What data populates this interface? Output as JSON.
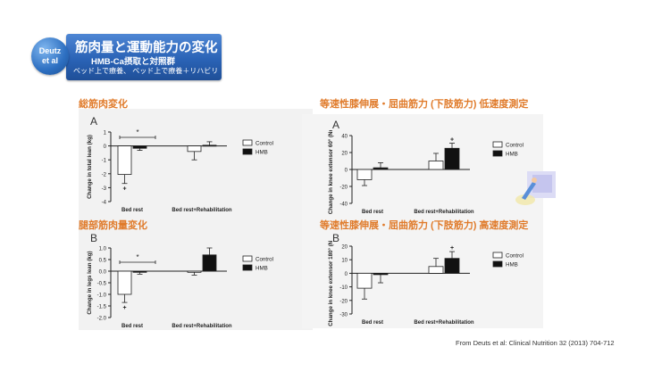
{
  "header": {
    "author_badge_line1": "Deutz",
    "author_badge_line2": "et al",
    "title": "筋肉量と運動能力の変化",
    "subtitle": "HMB-Ca摂取と対照群",
    "subtitle2": "ベッド上で療養、 ベッド上で療養＋リハビリ"
  },
  "colors": {
    "heading": "#e07b2b",
    "title_bar": "#2a63b6",
    "control_bar": "#ffffff",
    "hmb_bar": "#111111"
  },
  "citation": "From Deuts et al: Clinical Nutrition 32 (2013) 704-712",
  "chart_data": [
    {
      "id": "total-lean",
      "heading": "総筋肉変化",
      "panel_letter": "A",
      "type": "bar",
      "ylabel": "Change in total lean (kg)",
      "ylim": [
        -4,
        1
      ],
      "yticks": [
        "1",
        "0",
        "-1",
        "-2",
        "-3",
        "-4"
      ],
      "yticks_values": [
        1,
        0,
        -1,
        -2,
        -3,
        -4
      ],
      "categories": [
        "Bed rest",
        "Bed rest+Rehabilitation"
      ],
      "series": [
        {
          "name": "Control",
          "values": [
            -2.05,
            -0.4
          ],
          "errors": [
            0.65,
            0.6
          ]
        },
        {
          "name": "HMB",
          "values": [
            -0.17,
            0.05
          ],
          "errors": [
            0.15,
            0.25
          ]
        }
      ],
      "annotations": {
        "significance": "*",
        "dagger": "+"
      },
      "legend": [
        "Control",
        "HMB"
      ]
    },
    {
      "id": "legs-lean",
      "heading": "腿部筋肉量変化",
      "panel_letter": "B",
      "type": "bar",
      "ylabel": "Change in legs lean (kg)",
      "ylim": [
        -2.0,
        1.0
      ],
      "yticks": [
        "1.0",
        "0.5",
        "0.0",
        "-0.5",
        "-1.0",
        "-1.5",
        "-2.0"
      ],
      "yticks_values": [
        1.0,
        0.5,
        0.0,
        -0.5,
        -1.0,
        -1.5,
        -2.0
      ],
      "categories": [
        "Bed rest",
        "Bed rest+Rehabilitation"
      ],
      "series": [
        {
          "name": "Control",
          "values": [
            -1.0,
            -0.05
          ],
          "errors": [
            0.35,
            0.12
          ]
        },
        {
          "name": "HMB",
          "values": [
            -0.05,
            0.7
          ],
          "errors": [
            0.08,
            0.3
          ]
        }
      ],
      "annotations": {
        "significance": "*",
        "dagger": "+"
      },
      "legend": [
        "Control",
        "HMB"
      ]
    },
    {
      "id": "low-speed",
      "heading": "等速性膝伸展・屈曲筋力 (下肢筋力) 低速度測定",
      "panel_letter": "A",
      "type": "bar",
      "ylabel": "Change in knee extensor 60° (Nm)",
      "ylim": [
        -40,
        40
      ],
      "yticks": [
        "40",
        "20",
        "0",
        "-20",
        "-40"
      ],
      "yticks_values": [
        40,
        20,
        0,
        -20,
        -40
      ],
      "categories": [
        "Bed rest",
        "Bed rest+Rehabilitation"
      ],
      "series": [
        {
          "name": "Control",
          "values": [
            -12,
            10
          ],
          "errors": [
            7,
            9
          ]
        },
        {
          "name": "HMB",
          "values": [
            2,
            25
          ],
          "errors": [
            6,
            6
          ]
        }
      ],
      "annotations": {
        "dagger": "+"
      },
      "legend": [
        "Control",
        "HMB"
      ]
    },
    {
      "id": "high-speed",
      "heading": "等速性膝伸展・屈曲筋力 (下肢筋力) 高速度測定",
      "panel_letter": "B",
      "type": "bar",
      "ylabel": "Change in knee extensor 180° (Nm)",
      "ylim": [
        -30,
        20
      ],
      "yticks": [
        "20",
        "10",
        "0",
        "-10",
        "-20",
        "-30"
      ],
      "yticks_values": [
        20,
        10,
        0,
        -10,
        -20,
        -30
      ],
      "categories": [
        "Bed rest",
        "Bed rest+Rehabilitation"
      ],
      "series": [
        {
          "name": "Control",
          "values": [
            -11,
            5
          ],
          "errors": [
            8,
            6
          ]
        },
        {
          "name": "HMB",
          "values": [
            -1,
            11
          ],
          "errors": [
            6,
            5
          ]
        }
      ],
      "annotations": {
        "dagger": "+"
      },
      "legend": [
        "Control",
        "HMB"
      ]
    }
  ]
}
